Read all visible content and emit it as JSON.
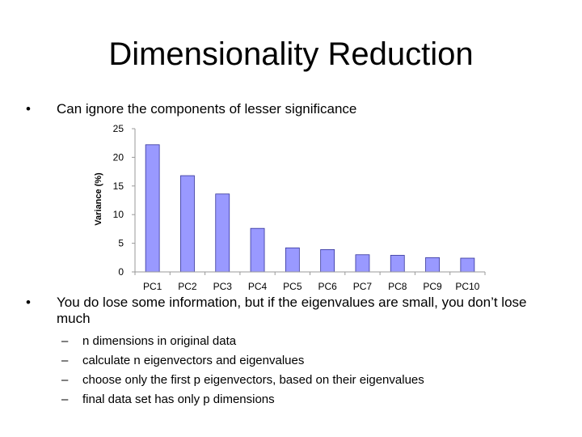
{
  "slide": {
    "title": "Dimensionality Reduction",
    "bullets": [
      {
        "marker": "•",
        "text": "Can ignore the components of lesser significance"
      },
      {
        "marker": "•",
        "text": "You do lose some information, but if the eigenvalues are small, you don’t lose much"
      }
    ],
    "sub_bullets": [
      {
        "marker": "–",
        "text": "n dimensions in original data"
      },
      {
        "marker": "–",
        "text": "calculate n eigenvectors and eigenvalues"
      },
      {
        "marker": "–",
        "text": "choose only the first p eigenvectors, based on their eigenvalues"
      },
      {
        "marker": "–",
        "text": "final data set has only p dimensions"
      }
    ]
  },
  "chart_data": {
    "type": "bar",
    "title": "",
    "xlabel": "",
    "ylabel": "Variance (%)",
    "categories": [
      "PC1",
      "PC2",
      "PC3",
      "PC4",
      "PC5",
      "PC6",
      "PC7",
      "PC8",
      "PC9",
      "PC10"
    ],
    "values": [
      22.2,
      16.8,
      13.6,
      7.6,
      4.2,
      3.9,
      3.0,
      2.9,
      2.5,
      2.4
    ],
    "ylim": [
      0,
      25
    ],
    "yticks": [
      0,
      5,
      10,
      15,
      20,
      25
    ],
    "grid": false,
    "legend": "none",
    "colors": {
      "bar_fill": "#9999ff",
      "bar_stroke": "#333399",
      "axis": "#999999"
    }
  }
}
